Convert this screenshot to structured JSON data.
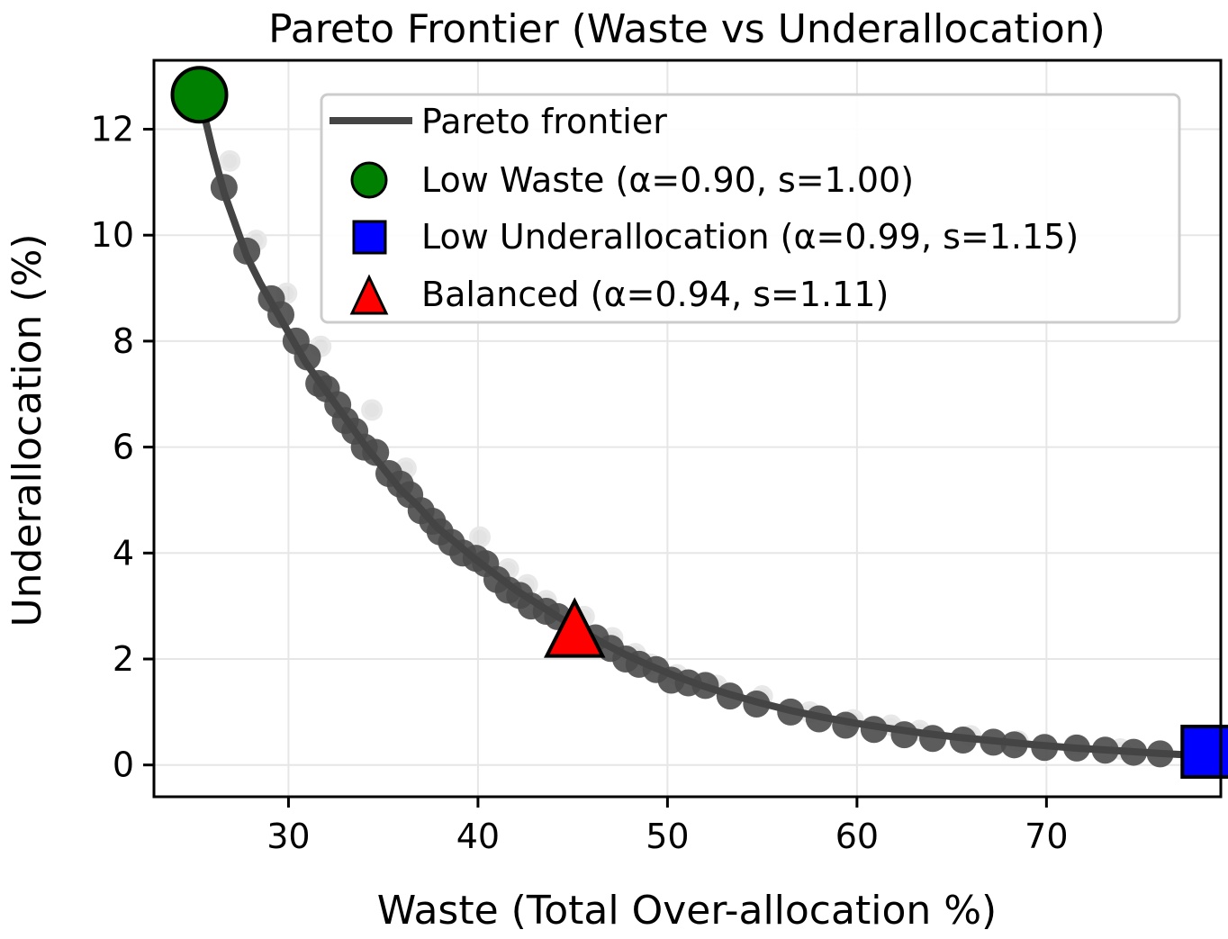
{
  "chart_data": {
    "type": "scatter",
    "title": "Pareto Frontier (Waste vs Underallocation)",
    "xlabel": "Waste (Total Over-allocation %)",
    "ylabel": "Underallocation (%)",
    "xlim": [
      22.9,
      79.2
    ],
    "ylim": [
      -0.6,
      13.3
    ],
    "xticks": [
      "30",
      "40",
      "50",
      "60",
      "70"
    ],
    "yticks": [
      "0",
      "2",
      "4",
      "6",
      "8",
      "10",
      "12"
    ],
    "grid": true,
    "legend_position": "upper right",
    "series": [
      {
        "name": "Pareto frontier",
        "kind": "line",
        "color": "#444444",
        "x": [
          25.4,
          26.0,
          26.6,
          27.2,
          27.8,
          28.5,
          29.3,
          30.1,
          30.9,
          31.7,
          32.5,
          33.3,
          34.1,
          35.0,
          35.9,
          36.8,
          37.8,
          38.8,
          39.8,
          40.9,
          42.0,
          43.1,
          44.2,
          45.4,
          46.6,
          47.8,
          49.1,
          50.4,
          51.8,
          53.3,
          54.9,
          56.6,
          58.2,
          59.9,
          61.7,
          63.5,
          65.4,
          67.4,
          69.4,
          71.5,
          73.7,
          75.9,
          78.0
        ],
        "y": [
          12.5,
          11.6,
          10.8,
          10.2,
          9.6,
          9.1,
          8.6,
          8.1,
          7.6,
          7.2,
          6.8,
          6.4,
          6.0,
          5.6,
          5.2,
          4.9,
          4.5,
          4.2,
          3.9,
          3.6,
          3.3,
          3.05,
          2.8,
          2.55,
          2.3,
          2.08,
          1.87,
          1.68,
          1.5,
          1.33,
          1.17,
          1.02,
          0.9,
          0.79,
          0.69,
          0.6,
          0.52,
          0.45,
          0.38,
          0.32,
          0.27,
          0.22,
          0.18
        ]
      },
      {
        "name": "",
        "kind": "frontier-points",
        "color": "#4a4a4a",
        "x": [
          26.6,
          27.8,
          29.1,
          29.6,
          30.4,
          31.0,
          31.6,
          32.0,
          32.6,
          33.0,
          33.5,
          34.0,
          34.6,
          35.3,
          35.9,
          36.4,
          37.0,
          37.6,
          38.0,
          38.6,
          39.2,
          39.9,
          40.4,
          41.0,
          41.6,
          42.2,
          42.8,
          43.6,
          44.2,
          46.2,
          47.0,
          47.8,
          48.5,
          49.4,
          50.2,
          51.1,
          52.0,
          53.3,
          54.7,
          56.5,
          58.0,
          59.4,
          60.9,
          62.5,
          64.0,
          65.6,
          67.2,
          68.3,
          69.9,
          71.6,
          73.1,
          74.6,
          76.0
        ],
        "y": [
          10.9,
          9.7,
          8.8,
          8.5,
          8.0,
          7.7,
          7.2,
          7.1,
          6.8,
          6.5,
          6.3,
          6.0,
          5.9,
          5.5,
          5.3,
          5.1,
          4.8,
          4.6,
          4.4,
          4.2,
          4.0,
          3.9,
          3.8,
          3.5,
          3.3,
          3.2,
          3.0,
          2.9,
          2.8,
          2.4,
          2.2,
          2.0,
          1.9,
          1.8,
          1.6,
          1.55,
          1.5,
          1.3,
          1.15,
          1.0,
          0.87,
          0.75,
          0.67,
          0.57,
          0.5,
          0.47,
          0.43,
          0.38,
          0.33,
          0.32,
          0.28,
          0.24,
          0.21
        ]
      },
      {
        "name": "",
        "kind": "dominated-points",
        "color": "#d9d9d9",
        "x": [
          26.9,
          28.3,
          29.9,
          31.7,
          34.4,
          36.2,
          40.1,
          41.6,
          42.6,
          43.6,
          45.6,
          47.1,
          48.3,
          49.1,
          50.5,
          52.6,
          55.0,
          57.5,
          59.8,
          61.8,
          63.3,
          66.0,
          68.5,
          71.5,
          73.9
        ],
        "y": [
          11.4,
          9.9,
          8.9,
          7.9,
          6.7,
          5.6,
          4.3,
          3.7,
          3.4,
          3.1,
          2.8,
          2.4,
          2.1,
          1.9,
          1.7,
          1.5,
          1.3,
          1.0,
          0.85,
          0.75,
          0.65,
          0.55,
          0.45,
          0.38,
          0.3
        ]
      },
      {
        "name": "Low Waste (α=0.90, s=1.00)",
        "kind": "marker",
        "marker": "circle",
        "color": "#008000",
        "x": [
          25.3
        ],
        "y": [
          12.65
        ]
      },
      {
        "name": "Low Underallocation (α=0.99, s=1.15)",
        "kind": "marker",
        "marker": "square",
        "color": "#0000ff",
        "x": [
          78.5
        ],
        "y": [
          0.25
        ]
      },
      {
        "name": "Balanced (α=0.94, s=1.11)",
        "kind": "marker",
        "marker": "triangle",
        "color": "#ff0000",
        "x": [
          45.1
        ],
        "y": [
          2.5
        ]
      }
    ]
  }
}
